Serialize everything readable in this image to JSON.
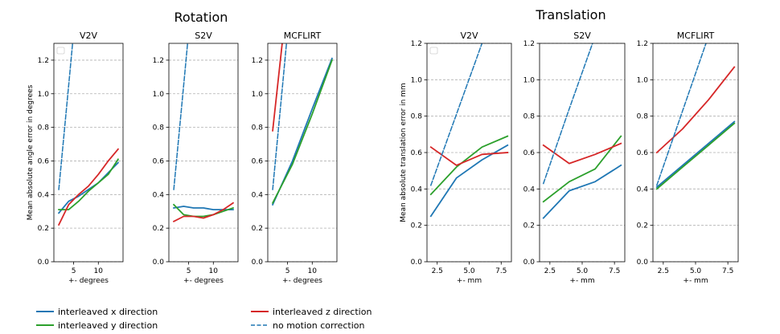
{
  "figure": {
    "group_titles": [
      "Rotation",
      "Translation"
    ],
    "legend": [
      {
        "label": "interleaved x direction",
        "color": "#1f77b4",
        "dashed": false
      },
      {
        "label": "interleaved y direction",
        "color": "#2ca02c",
        "dashed": false
      },
      {
        "label": "interleaved z direction",
        "color": "#d62728",
        "dashed": false
      },
      {
        "label": "no motion correction",
        "color": "#1f77b4",
        "dashed": true
      }
    ]
  },
  "chart_data": [
    {
      "type": "line",
      "group": "Rotation",
      "title": "V2V",
      "xlabel": "+- degrees",
      "ylabel": "Mean absolute angle error in degrees",
      "xlim": [
        1,
        15
      ],
      "ylim": [
        0,
        1.3
      ],
      "xticks": [
        5,
        10
      ],
      "xtick_labels": [
        "5",
        "10"
      ],
      "yticks": [
        0,
        0.2,
        0.4,
        0.6,
        0.8,
        1.0,
        1.2
      ],
      "ytick_labels": [
        "0.0",
        "0.2",
        "0.4",
        "0.6",
        "0.8",
        "1.0",
        "1.2"
      ],
      "grid": "y",
      "legend": "top-left (empty)",
      "series": [
        {
          "name": "interleaved x direction",
          "color": "#1f77b4",
          "dash": false,
          "x": [
            2,
            4,
            6,
            8,
            10,
            12,
            14
          ],
          "y": [
            0.29,
            0.36,
            0.39,
            0.43,
            0.47,
            0.53,
            0.59
          ]
        },
        {
          "name": "interleaved y direction",
          "color": "#2ca02c",
          "dash": false,
          "x": [
            2,
            4,
            6,
            8,
            10,
            12,
            14
          ],
          "y": [
            0.31,
            0.31,
            0.36,
            0.42,
            0.47,
            0.52,
            0.61
          ]
        },
        {
          "name": "interleaved z direction",
          "color": "#d62728",
          "dash": false,
          "x": [
            2,
            4,
            6,
            8,
            10,
            12,
            14
          ],
          "y": [
            0.22,
            0.34,
            0.4,
            0.45,
            0.52,
            0.6,
            0.67
          ]
        },
        {
          "name": "no motion correction",
          "color": "#1f77b4",
          "dash": true,
          "x": [
            2,
            4,
            6
          ],
          "y": [
            0.43,
            1.05,
            1.68
          ]
        }
      ]
    },
    {
      "type": "line",
      "group": "Rotation",
      "title": "S2V",
      "xlabel": "+- degrees",
      "ylabel": "",
      "xlim": [
        1,
        15
      ],
      "ylim": [
        0,
        1.3
      ],
      "xticks": [
        5,
        10
      ],
      "xtick_labels": [
        "5",
        "10"
      ],
      "yticks": [
        0,
        0.2,
        0.4,
        0.6,
        0.8,
        1.0,
        1.2
      ],
      "ytick_labels": [
        "0.0",
        "0.2",
        "0.4",
        "0.6",
        "0.8",
        "1.0",
        "1.2"
      ],
      "grid": "y",
      "series": [
        {
          "name": "interleaved x direction",
          "color": "#1f77b4",
          "dash": false,
          "x": [
            2,
            4,
            6,
            8,
            10,
            12,
            14
          ],
          "y": [
            0.32,
            0.33,
            0.32,
            0.32,
            0.31,
            0.31,
            0.31
          ]
        },
        {
          "name": "interleaved y direction",
          "color": "#2ca02c",
          "dash": false,
          "x": [
            2,
            4,
            6,
            8,
            10,
            12,
            14
          ],
          "y": [
            0.34,
            0.28,
            0.27,
            0.27,
            0.28,
            0.3,
            0.32
          ]
        },
        {
          "name": "interleaved z direction",
          "color": "#d62728",
          "dash": false,
          "x": [
            2,
            4,
            6,
            8,
            10,
            12,
            14
          ],
          "y": [
            0.24,
            0.27,
            0.27,
            0.26,
            0.28,
            0.31,
            0.35
          ]
        },
        {
          "name": "no motion correction",
          "color": "#1f77b4",
          "dash": true,
          "x": [
            2,
            4,
            6
          ],
          "y": [
            0.43,
            1.05,
            1.68
          ]
        }
      ]
    },
    {
      "type": "line",
      "group": "Rotation",
      "title": "MCFLIRT",
      "xlabel": "+- degrees",
      "ylabel": "",
      "xlim": [
        1,
        15
      ],
      "ylim": [
        0,
        1.3
      ],
      "xticks": [
        5,
        10
      ],
      "xtick_labels": [
        "5",
        "10"
      ],
      "yticks": [
        0,
        0.2,
        0.4,
        0.6,
        0.8,
        1.0,
        1.2
      ],
      "ytick_labels": [
        "0.0",
        "0.2",
        "0.4",
        "0.6",
        "0.8",
        "1.0",
        "1.2"
      ],
      "grid": "y",
      "series": [
        {
          "name": "interleaved x direction",
          "color": "#1f77b4",
          "dash": false,
          "x": [
            2,
            6,
            10,
            14
          ],
          "y": [
            0.34,
            0.6,
            0.91,
            1.21
          ]
        },
        {
          "name": "interleaved y direction",
          "color": "#2ca02c",
          "dash": false,
          "x": [
            2,
            6,
            10,
            14
          ],
          "y": [
            0.35,
            0.58,
            0.88,
            1.2
          ]
        },
        {
          "name": "interleaved z direction",
          "color": "#d62728",
          "dash": false,
          "x": [
            2,
            4,
            6
          ],
          "y": [
            0.78,
            1.32,
            1.86
          ]
        },
        {
          "name": "no motion correction",
          "color": "#1f77b4",
          "dash": true,
          "x": [
            2,
            4,
            6
          ],
          "y": [
            0.43,
            1.05,
            1.68
          ]
        }
      ]
    },
    {
      "type": "line",
      "group": "Translation",
      "title": "V2V",
      "xlabel": "+- mm",
      "ylabel": "Mean absolute translation error in mm",
      "xlim": [
        1.7,
        8.3
      ],
      "ylim": [
        0,
        1.2
      ],
      "xticks": [
        2.5,
        5.0,
        7.5
      ],
      "xtick_labels": [
        "2.5",
        "5.0",
        "7.5"
      ],
      "yticks": [
        0,
        0.2,
        0.4,
        0.6,
        0.8,
        1.0,
        1.2
      ],
      "ytick_labels": [
        "0.0",
        "0.2",
        "0.4",
        "0.6",
        "0.8",
        "1.0",
        "1.2"
      ],
      "grid": "y",
      "legend": "top-left (empty)",
      "series": [
        {
          "name": "interleaved x direction",
          "color": "#1f77b4",
          "dash": false,
          "x": [
            2,
            4,
            6,
            8
          ],
          "y": [
            0.25,
            0.46,
            0.56,
            0.64
          ]
        },
        {
          "name": "interleaved y direction",
          "color": "#2ca02c",
          "dash": false,
          "x": [
            2,
            4,
            6,
            8
          ],
          "y": [
            0.37,
            0.52,
            0.63,
            0.69
          ]
        },
        {
          "name": "interleaved z direction",
          "color": "#d62728",
          "dash": false,
          "x": [
            2,
            4,
            6,
            8
          ],
          "y": [
            0.63,
            0.53,
            0.59,
            0.6
          ]
        },
        {
          "name": "no motion correction",
          "color": "#1f77b4",
          "dash": true,
          "x": [
            2,
            4,
            6
          ],
          "y": [
            0.42,
            0.81,
            1.2
          ]
        }
      ]
    },
    {
      "type": "line",
      "group": "Translation",
      "title": "S2V",
      "xlabel": "+- mm",
      "ylabel": "",
      "xlim": [
        1.7,
        8.3
      ],
      "ylim": [
        0,
        1.2
      ],
      "xticks": [
        2.5,
        5.0,
        7.5
      ],
      "xtick_labels": [
        "2.5",
        "5.0",
        "7.5"
      ],
      "yticks": [
        0,
        0.2,
        0.4,
        0.6,
        0.8,
        1.0,
        1.2
      ],
      "ytick_labels": [
        "0.0",
        "0.2",
        "0.4",
        "0.6",
        "0.8",
        "1.0",
        "1.2"
      ],
      "grid": "y",
      "series": [
        {
          "name": "interleaved x direction",
          "color": "#1f77b4",
          "dash": false,
          "x": [
            2,
            4,
            6,
            8
          ],
          "y": [
            0.24,
            0.39,
            0.44,
            0.53
          ]
        },
        {
          "name": "interleaved y direction",
          "color": "#2ca02c",
          "dash": false,
          "x": [
            2,
            4,
            6,
            8
          ],
          "y": [
            0.33,
            0.44,
            0.51,
            0.69
          ]
        },
        {
          "name": "interleaved z direction",
          "color": "#d62728",
          "dash": false,
          "x": [
            2,
            4,
            6,
            8
          ],
          "y": [
            0.64,
            0.54,
            0.59,
            0.65
          ]
        },
        {
          "name": "no motion correction",
          "color": "#1f77b4",
          "dash": true,
          "x": [
            2,
            4,
            6,
            8
          ],
          "y": [
            0.43,
            0.84,
            1.24,
            1.64
          ]
        }
      ]
    },
    {
      "type": "line",
      "group": "Translation",
      "title": "MCFLIRT",
      "xlabel": "+- mm",
      "ylabel": "",
      "xlim": [
        1.7,
        8.3
      ],
      "ylim": [
        0,
        1.2
      ],
      "xticks": [
        2.5,
        5.0,
        7.5
      ],
      "xtick_labels": [
        "2.5",
        "5.0",
        "7.5"
      ],
      "yticks": [
        0,
        0.2,
        0.4,
        0.6,
        0.8,
        1.0,
        1.2
      ],
      "ytick_labels": [
        "0.0",
        "0.2",
        "0.4",
        "0.6",
        "0.8",
        "1.0",
        "1.2"
      ],
      "grid": "y",
      "series": [
        {
          "name": "interleaved x direction",
          "color": "#1f77b4",
          "dash": false,
          "x": [
            2,
            4,
            6,
            8
          ],
          "y": [
            0.41,
            0.53,
            0.65,
            0.77
          ]
        },
        {
          "name": "interleaved y direction",
          "color": "#2ca02c",
          "dash": false,
          "x": [
            2,
            4,
            6,
            8
          ],
          "y": [
            0.4,
            0.52,
            0.64,
            0.76
          ]
        },
        {
          "name": "interleaved z direction",
          "color": "#d62728",
          "dash": false,
          "x": [
            2,
            4,
            6,
            8
          ],
          "y": [
            0.6,
            0.73,
            0.89,
            1.07
          ]
        },
        {
          "name": "no motion correction",
          "color": "#1f77b4",
          "dash": true,
          "x": [
            2,
            4,
            6
          ],
          "y": [
            0.42,
            0.83,
            1.24
          ]
        }
      ]
    }
  ]
}
